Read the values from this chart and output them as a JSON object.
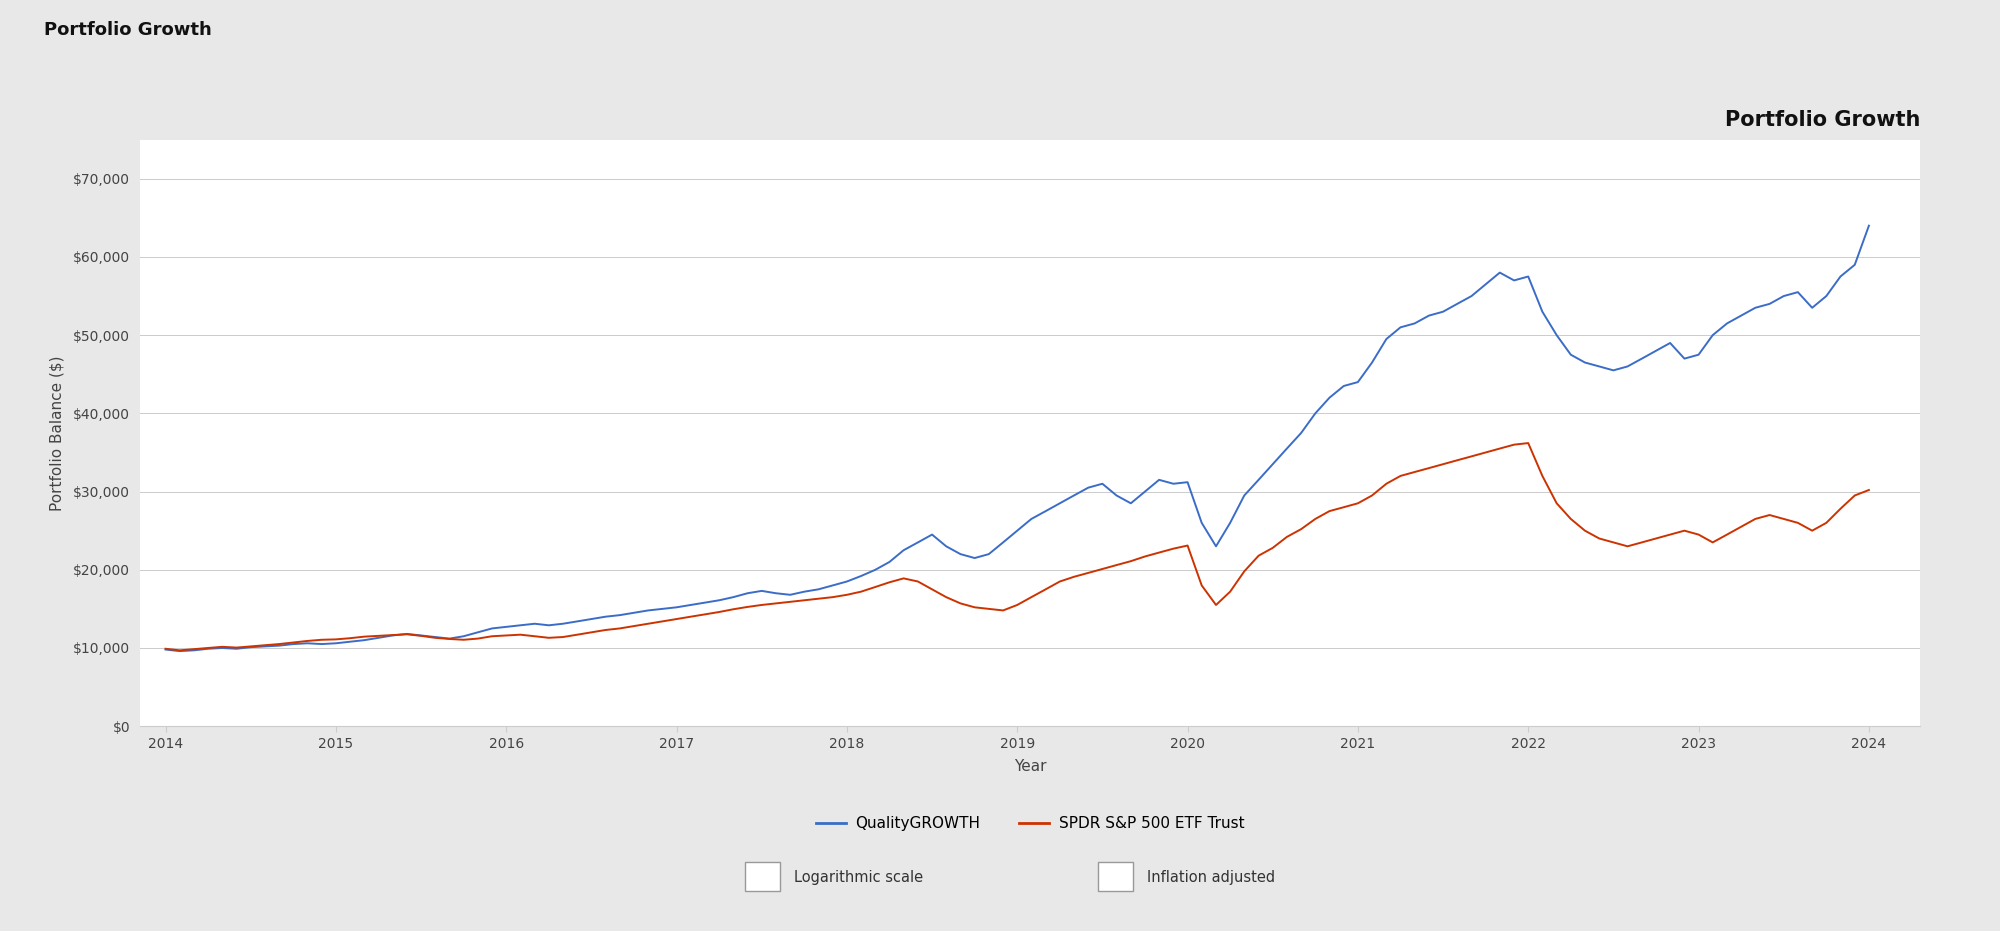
{
  "title": "Portfolio Growth",
  "header_title": "Portfolio Growth",
  "xlabel": "Year",
  "ylabel": "Portfolio Balance ($)",
  "outer_bg_color": "#e8e8e8",
  "box_bg_color": "#ffffff",
  "header_bg_color": "#d8d8d8",
  "plot_bg_color": "#ffffff",
  "title_fontsize": 15,
  "axis_fontsize": 11,
  "tick_fontsize": 10,
  "blue_color": "#3b6cc7",
  "red_color": "#cc3300",
  "legend1": "QualityGROWTH",
  "legend2": "SPDR S&P 500 ETF Trust",
  "check1": "Logarithmic scale",
  "check2": "Inflation adjusted",
  "ylim": [
    0,
    75000
  ],
  "yticks": [
    0,
    10000,
    20000,
    30000,
    40000,
    50000,
    60000,
    70000
  ],
  "xticks": [
    2014,
    2015,
    2016,
    2017,
    2018,
    2019,
    2020,
    2021,
    2022,
    2023,
    2024
  ],
  "quality_x": [
    2014.0,
    2014.083,
    2014.167,
    2014.25,
    2014.333,
    2014.417,
    2014.5,
    2014.583,
    2014.667,
    2014.75,
    2014.833,
    2014.917,
    2015.0,
    2015.083,
    2015.167,
    2015.25,
    2015.333,
    2015.417,
    2015.5,
    2015.583,
    2015.667,
    2015.75,
    2015.833,
    2015.917,
    2016.0,
    2016.083,
    2016.167,
    2016.25,
    2016.333,
    2016.417,
    2016.5,
    2016.583,
    2016.667,
    2016.75,
    2016.833,
    2016.917,
    2017.0,
    2017.083,
    2017.167,
    2017.25,
    2017.333,
    2017.417,
    2017.5,
    2017.583,
    2017.667,
    2017.75,
    2017.833,
    2017.917,
    2018.0,
    2018.083,
    2018.167,
    2018.25,
    2018.333,
    2018.417,
    2018.5,
    2018.583,
    2018.667,
    2018.75,
    2018.833,
    2018.917,
    2019.0,
    2019.083,
    2019.167,
    2019.25,
    2019.333,
    2019.417,
    2019.5,
    2019.583,
    2019.667,
    2019.75,
    2019.833,
    2019.917,
    2020.0,
    2020.083,
    2020.167,
    2020.25,
    2020.333,
    2020.417,
    2020.5,
    2020.583,
    2020.667,
    2020.75,
    2020.833,
    2020.917,
    2021.0,
    2021.083,
    2021.167,
    2021.25,
    2021.333,
    2021.417,
    2021.5,
    2021.583,
    2021.667,
    2021.75,
    2021.833,
    2021.917,
    2022.0,
    2022.083,
    2022.167,
    2022.25,
    2022.333,
    2022.417,
    2022.5,
    2022.583,
    2022.667,
    2022.75,
    2022.833,
    2022.917,
    2023.0,
    2023.083,
    2023.167,
    2023.25,
    2023.333,
    2023.417,
    2023.5,
    2023.583,
    2023.667,
    2023.75,
    2023.833,
    2023.917,
    2024.0
  ],
  "quality_y": [
    9800,
    9600,
    9700,
    9900,
    10000,
    9900,
    10100,
    10200,
    10300,
    10500,
    10600,
    10500,
    10600,
    10800,
    11000,
    11300,
    11600,
    11800,
    11600,
    11400,
    11200,
    11500,
    12000,
    12500,
    12700,
    12900,
    13100,
    12900,
    13100,
    13400,
    13700,
    14000,
    14200,
    14500,
    14800,
    15000,
    15200,
    15500,
    15800,
    16100,
    16500,
    17000,
    17300,
    17000,
    16800,
    17200,
    17500,
    18000,
    18500,
    19200,
    20000,
    21000,
    22500,
    23500,
    24500,
    23000,
    22000,
    21500,
    22000,
    23500,
    25000,
    26500,
    27500,
    28500,
    29500,
    30500,
    31000,
    29500,
    28500,
    30000,
    31500,
    31000,
    31200,
    26000,
    23000,
    26000,
    29500,
    31500,
    33500,
    35500,
    37500,
    40000,
    42000,
    43500,
    44000,
    46500,
    49500,
    51000,
    51500,
    52500,
    53000,
    54000,
    55000,
    56500,
    58000,
    57000,
    57500,
    53000,
    50000,
    47500,
    46500,
    46000,
    45500,
    46000,
    47000,
    48000,
    49000,
    47000,
    47500,
    50000,
    51500,
    52500,
    53500,
    54000,
    55000,
    55500,
    53500,
    55000,
    57500,
    59000,
    64000
  ],
  "spdr_x": [
    2014.0,
    2014.083,
    2014.167,
    2014.25,
    2014.333,
    2014.417,
    2014.5,
    2014.583,
    2014.667,
    2014.75,
    2014.833,
    2014.917,
    2015.0,
    2015.083,
    2015.167,
    2015.25,
    2015.333,
    2015.417,
    2015.5,
    2015.583,
    2015.667,
    2015.75,
    2015.833,
    2015.917,
    2016.0,
    2016.083,
    2016.167,
    2016.25,
    2016.333,
    2016.417,
    2016.5,
    2016.583,
    2016.667,
    2016.75,
    2016.833,
    2016.917,
    2017.0,
    2017.083,
    2017.167,
    2017.25,
    2017.333,
    2017.417,
    2017.5,
    2017.583,
    2017.667,
    2017.75,
    2017.833,
    2017.917,
    2018.0,
    2018.083,
    2018.167,
    2018.25,
    2018.333,
    2018.417,
    2018.5,
    2018.583,
    2018.667,
    2018.75,
    2018.833,
    2018.917,
    2019.0,
    2019.083,
    2019.167,
    2019.25,
    2019.333,
    2019.417,
    2019.5,
    2019.583,
    2019.667,
    2019.75,
    2019.833,
    2019.917,
    2020.0,
    2020.083,
    2020.167,
    2020.25,
    2020.333,
    2020.417,
    2020.5,
    2020.583,
    2020.667,
    2020.75,
    2020.833,
    2020.917,
    2021.0,
    2021.083,
    2021.167,
    2021.25,
    2021.333,
    2021.417,
    2021.5,
    2021.583,
    2021.667,
    2021.75,
    2021.833,
    2021.917,
    2022.0,
    2022.083,
    2022.167,
    2022.25,
    2022.333,
    2022.417,
    2022.5,
    2022.583,
    2022.667,
    2022.75,
    2022.833,
    2022.917,
    2023.0,
    2023.083,
    2023.167,
    2023.25,
    2023.333,
    2023.417,
    2023.5,
    2023.583,
    2023.667,
    2023.75,
    2023.833,
    2023.917,
    2024.0
  ],
  "spdr_y": [
    9900,
    9700,
    9850,
    10000,
    10150,
    10050,
    10200,
    10350,
    10500,
    10700,
    10900,
    11050,
    11100,
    11250,
    11450,
    11550,
    11650,
    11750,
    11550,
    11300,
    11150,
    11050,
    11200,
    11500,
    11600,
    11700,
    11500,
    11300,
    11400,
    11700,
    12000,
    12300,
    12500,
    12800,
    13100,
    13400,
    13700,
    14000,
    14300,
    14600,
    14950,
    15250,
    15500,
    15700,
    15900,
    16100,
    16300,
    16500,
    16800,
    17200,
    17800,
    18400,
    18900,
    18500,
    17500,
    16500,
    15700,
    15200,
    15000,
    14800,
    15500,
    16500,
    17500,
    18500,
    19100,
    19600,
    20100,
    20600,
    21100,
    21700,
    22200,
    22700,
    23100,
    18000,
    15500,
    17200,
    19800,
    21800,
    22800,
    24200,
    25200,
    26500,
    27500,
    28000,
    28500,
    29500,
    31000,
    32000,
    32500,
    33000,
    33500,
    34000,
    34500,
    35000,
    35500,
    36000,
    36200,
    32000,
    28500,
    26500,
    25000,
    24000,
    23500,
    23000,
    23500,
    24000,
    24500,
    25000,
    24500,
    23500,
    24500,
    25500,
    26500,
    27000,
    26500,
    26000,
    25000,
    26000,
    27800,
    29500,
    30200
  ]
}
